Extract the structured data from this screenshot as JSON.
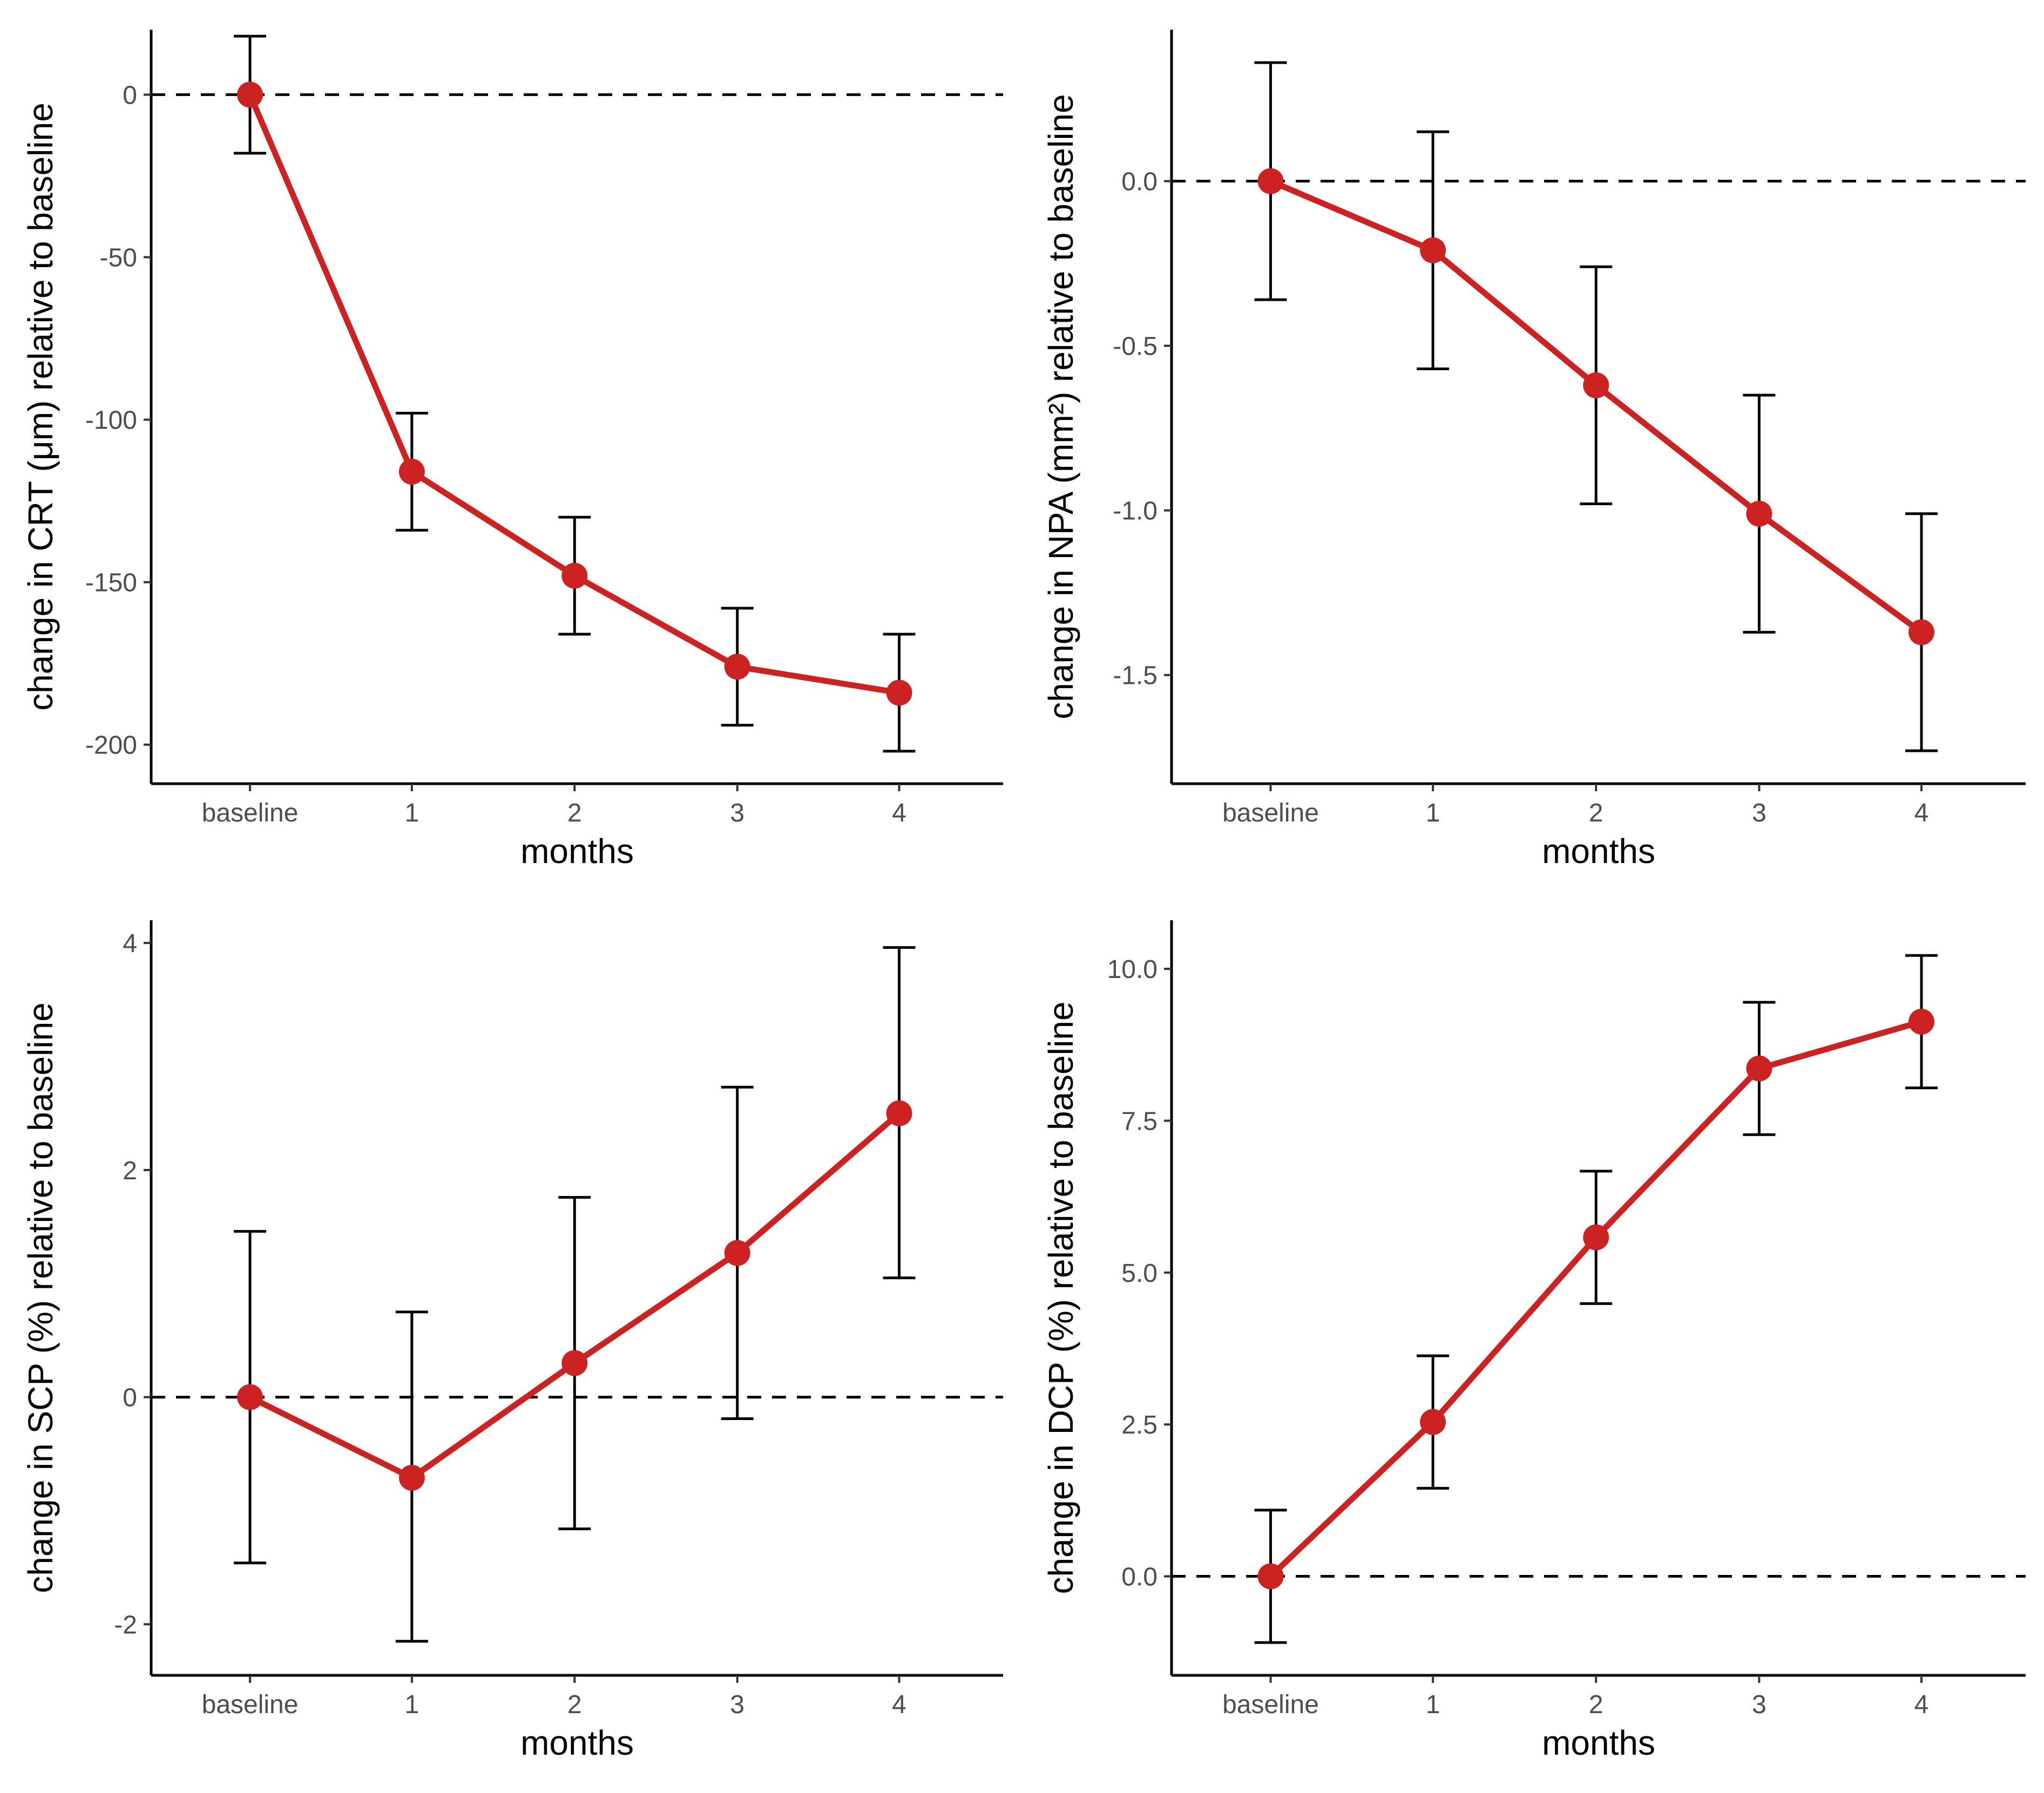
{
  "chart_data": [
    {
      "type": "line",
      "panel": "top-left",
      "title": "",
      "xlabel": "months",
      "ylabel": "change in CRT (μm) relative to baseline",
      "categories": [
        "baseline",
        "1",
        "2",
        "3",
        "4"
      ],
      "ylim": [
        -212,
        20
      ],
      "yticks": [
        0,
        -50,
        -100,
        -150,
        -200
      ],
      "ytick_labels": [
        "0",
        "-50",
        "-100",
        "-150",
        "-200"
      ],
      "reference_line": 0,
      "series": [
        {
          "name": "CRT",
          "color": "#cc2222",
          "values": [
            0,
            -116,
            -148,
            -176,
            -184
          ],
          "lower": [
            -18,
            -134,
            -166,
            -194,
            -202
          ],
          "upper": [
            18,
            -98,
            -130,
            -158,
            -166
          ]
        }
      ]
    },
    {
      "type": "line",
      "panel": "top-right",
      "title": "",
      "xlabel": "months",
      "ylabel": "change in NPA (mm²) relative to baseline",
      "categories": [
        "baseline",
        "1",
        "2",
        "3",
        "4"
      ],
      "ylim": [
        -1.83,
        0.46
      ],
      "yticks": [
        0.0,
        -0.5,
        -1.0,
        -1.5
      ],
      "ytick_labels": [
        "0.0",
        "-0.5",
        "-1.0",
        "-1.5"
      ],
      "reference_line": 0,
      "series": [
        {
          "name": "NPA",
          "color": "#cc2222",
          "values": [
            0,
            -0.21,
            -0.62,
            -1.01,
            -1.37
          ],
          "lower": [
            -0.36,
            -0.57,
            -0.98,
            -1.37,
            -1.73
          ],
          "upper": [
            0.36,
            0.15,
            -0.26,
            -0.65,
            -1.01
          ]
        }
      ]
    },
    {
      "type": "line",
      "panel": "bottom-left",
      "title": "",
      "xlabel": "months",
      "ylabel": "change in SCP (%) relative to baseline",
      "categories": [
        "baseline",
        "1",
        "2",
        "3",
        "4"
      ],
      "ylim": [
        -2.45,
        4.2
      ],
      "yticks": [
        4,
        2,
        0,
        -2
      ],
      "ytick_labels": [
        "4",
        "2",
        "0",
        "-2"
      ],
      "reference_line": 0,
      "series": [
        {
          "name": "SCP",
          "color": "#cc2222",
          "values": [
            0,
            -0.71,
            0.3,
            1.27,
            2.5
          ],
          "lower": [
            -1.46,
            -2.15,
            -1.16,
            -0.19,
            1.05
          ],
          "upper": [
            1.46,
            0.75,
            1.76,
            2.73,
            3.96
          ]
        }
      ]
    },
    {
      "type": "line",
      "panel": "bottom-right",
      "title": "",
      "xlabel": "months",
      "ylabel": "change in DCP (%) relative to baseline",
      "categories": [
        "baseline",
        "1",
        "2",
        "3",
        "4"
      ],
      "ylim": [
        -1.63,
        10.8
      ],
      "yticks": [
        10.0,
        7.5,
        5.0,
        2.5,
        0.0
      ],
      "ytick_labels": [
        "10.0",
        "7.5",
        "5.0",
        "2.5",
        "0.0"
      ],
      "reference_line": 0,
      "series": [
        {
          "name": "DCP",
          "color": "#cc2222",
          "values": [
            0,
            2.54,
            5.58,
            8.36,
            9.13
          ],
          "lower": [
            -1.09,
            1.45,
            4.49,
            7.27,
            8.04
          ],
          "upper": [
            1.09,
            3.63,
            6.67,
            9.45,
            10.22
          ]
        }
      ]
    }
  ]
}
